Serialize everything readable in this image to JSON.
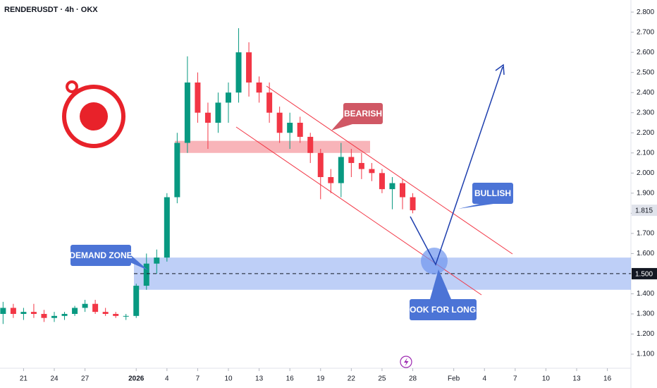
{
  "chart_data": {
    "type": "candlestick",
    "title": "RENDERUSDT · 4h · OKX",
    "categories": [
      null,
      null,
      null,
      null,
      null,
      null,
      null,
      null,
      null,
      null,
      null,
      null,
      null,
      null,
      null,
      null,
      null,
      null,
      null,
      null,
      null,
      null,
      null,
      null,
      null,
      null,
      null,
      null,
      null,
      null,
      null,
      null,
      null,
      null,
      null,
      null,
      null,
      null,
      null,
      null,
      null
    ],
    "open": [
      1.3,
      1.33,
      1.3,
      1.31,
      1.3,
      1.28,
      1.29,
      1.3,
      1.33,
      1.35,
      1.31,
      1.3,
      1.29,
      1.29,
      1.44,
      1.55,
      1.58,
      1.88,
      2.15,
      2.45,
      2.3,
      2.25,
      2.35,
      2.4,
      2.6,
      2.45,
      2.4,
      2.3,
      2.2,
      2.25,
      2.18,
      2.1,
      1.98,
      1.95,
      2.08,
      2.05,
      2.02,
      2.0,
      1.92,
      1.95,
      1.88
    ],
    "high": [
      1.36,
      1.35,
      1.33,
      1.35,
      1.32,
      1.31,
      1.31,
      1.34,
      1.37,
      1.37,
      1.33,
      1.31,
      1.3,
      1.45,
      1.6,
      1.62,
      1.9,
      2.2,
      2.58,
      2.5,
      2.35,
      2.4,
      2.45,
      2.72,
      2.65,
      2.48,
      2.45,
      2.33,
      2.3,
      2.28,
      2.2,
      2.12,
      2.02,
      2.15,
      2.12,
      2.1,
      2.05,
      2.02,
      1.98,
      1.97,
      1.9
    ],
    "low": [
      1.25,
      1.28,
      1.27,
      1.28,
      1.26,
      1.26,
      1.27,
      1.29,
      1.31,
      1.3,
      1.29,
      1.28,
      1.27,
      1.28,
      1.42,
      1.5,
      1.56,
      1.85,
      2.1,
      2.25,
      2.12,
      2.2,
      2.25,
      2.35,
      2.38,
      2.35,
      2.25,
      2.15,
      2.12,
      2.15,
      2.05,
      1.87,
      1.9,
      1.88,
      1.98,
      1.97,
      1.96,
      1.9,
      1.82,
      1.82,
      1.8
    ],
    "close": [
      1.33,
      1.3,
      1.31,
      1.3,
      1.28,
      1.29,
      1.3,
      1.33,
      1.35,
      1.31,
      1.3,
      1.29,
      1.29,
      1.44,
      1.55,
      1.58,
      1.88,
      2.15,
      2.45,
      2.3,
      2.25,
      2.35,
      2.4,
      2.6,
      2.45,
      2.4,
      2.3,
      2.2,
      2.25,
      2.18,
      2.1,
      1.98,
      1.95,
      2.08,
      2.05,
      2.02,
      2.0,
      1.92,
      1.95,
      1.88,
      1.815
    ],
    "colors": {
      "up": "#089981",
      "down": "#f23645"
    },
    "xlim": [
      -0.3,
      61.3
    ],
    "xticks": [
      {
        "value": 2,
        "label": "21"
      },
      {
        "value": 5,
        "label": "24"
      },
      {
        "value": 8,
        "label": "27"
      },
      {
        "value": 13,
        "label": "2026"
      },
      {
        "value": 16,
        "label": "4"
      },
      {
        "value": 19,
        "label": "7"
      },
      {
        "value": 22,
        "label": "10"
      },
      {
        "value": 25,
        "label": "13"
      },
      {
        "value": 28,
        "label": "16"
      },
      {
        "value": 31,
        "label": "19"
      },
      {
        "value": 34,
        "label": "22"
      },
      {
        "value": 37,
        "label": "25"
      },
      {
        "value": 40,
        "label": "28"
      },
      {
        "value": 44,
        "label": "Feb"
      },
      {
        "value": 47,
        "label": "4"
      },
      {
        "value": 50,
        "label": "7"
      },
      {
        "value": 53,
        "label": "10"
      },
      {
        "value": 56,
        "label": "13"
      },
      {
        "value": 59,
        "label": "16"
      }
    ],
    "ylim": [
      1.03,
      2.86
    ],
    "yticks": [
      {
        "value": 1.1,
        "label": "1.100"
      },
      {
        "value": 1.2,
        "label": "1.200"
      },
      {
        "value": 1.3,
        "label": "1.300"
      },
      {
        "value": 1.4,
        "label": "1.400"
      },
      {
        "value": 1.5,
        "label": "1.500"
      },
      {
        "value": 1.6,
        "label": "1.600"
      },
      {
        "value": 1.7,
        "label": "1.700"
      },
      {
        "value": 1.8,
        "label": "1.800"
      },
      {
        "value": 1.9,
        "label": "1.900"
      },
      {
        "value": 2.0,
        "label": "2.000"
      },
      {
        "value": 2.1,
        "label": "2.100"
      },
      {
        "value": 2.2,
        "label": "2.200"
      },
      {
        "value": 2.3,
        "label": "2.300"
      },
      {
        "value": 2.4,
        "label": "2.400"
      },
      {
        "value": 2.5,
        "label": "2.500"
      },
      {
        "value": 2.6,
        "label": "2.600"
      },
      {
        "value": 2.7,
        "label": "2.700"
      },
      {
        "value": 2.8,
        "label": "2.800"
      }
    ],
    "grid": false,
    "last_price": {
      "value": 1.815,
      "label": "1.815"
    },
    "level": {
      "value": 1.5,
      "label": "1.500"
    },
    "supply_zone": [
      2.1,
      2.16
    ],
    "demand_zone": [
      1.42,
      1.58
    ],
    "annotations": {
      "bearish": "BEARISH",
      "bullish": "BULLISH",
      "demand": "DEMAND ZONE",
      "longs": "LOOK FOR LONGS"
    }
  }
}
